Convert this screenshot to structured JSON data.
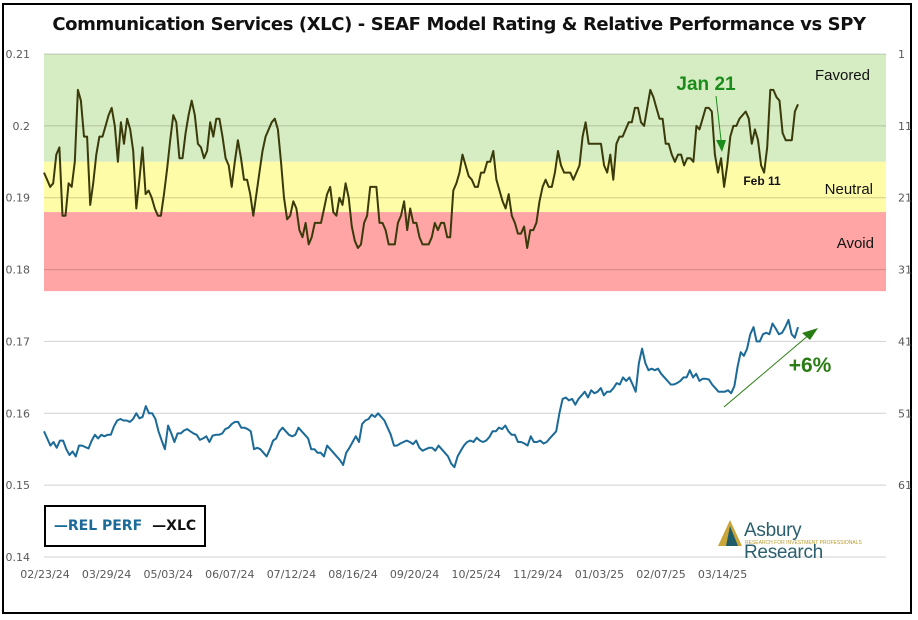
{
  "chart_data": {
    "type": "line",
    "title": "Communication Services (XLC) - SEAF Model Rating & Relative Performance vs SPY",
    "xlabel": "",
    "ylabel": "",
    "y_left": {
      "ticks": [
        "0.14",
        "0.15",
        "0.16",
        "0.17",
        "0.18",
        "0.19",
        "0.2",
        "0.21"
      ],
      "range": [
        0.14,
        0.21
      ]
    },
    "y_right": {
      "ticks": [
        "1",
        "11",
        "21",
        "31",
        "41",
        "51",
        "61"
      ],
      "range": [
        1,
        71
      ],
      "inverted": true
    },
    "x_ticks": [
      "02/23/24",
      "03/29/24",
      "05/03/24",
      "06/07/24",
      "07/12/24",
      "08/16/24",
      "09/20/24",
      "10/25/24",
      "11/29/24",
      "01/03/25",
      "02/07/25",
      "03/14/25"
    ],
    "grid": true,
    "legend": {
      "position": "bottom-left",
      "entries": [
        {
          "label": "—REL PERF",
          "color": "#1b6a98"
        },
        {
          "label": "—XLC",
          "color": "#111111"
        }
      ]
    },
    "bands": [
      {
        "name": "Favored",
        "from": 0.195,
        "to": 0.21,
        "color": "#d6ecc2"
      },
      {
        "name": "Neutral",
        "from": 0.188,
        "to": 0.195,
        "color": "#fffca8"
      },
      {
        "name": "Avoid",
        "from": 0.177,
        "to": 0.188,
        "color": "#ffa5a5"
      }
    ],
    "series": [
      {
        "name": "XLC",
        "color": "#3a3a0a",
        "axis": "left",
        "x_start": 0,
        "x_end": 55.3,
        "values": [
          0.1935,
          0.1925,
          0.1915,
          0.192,
          0.196,
          0.197,
          0.1875,
          0.1875,
          0.192,
          0.1915,
          0.195,
          0.205,
          0.2035,
          0.1985,
          0.1985,
          0.189,
          0.192,
          0.196,
          0.1985,
          0.1985,
          0.2,
          0.2015,
          0.2025,
          0.2,
          0.195,
          0.2005,
          0.1975,
          0.201,
          0.1995,
          0.1965,
          0.1885,
          0.1925,
          0.197,
          0.1905,
          0.191,
          0.19,
          0.1885,
          0.1875,
          0.1875,
          0.1905,
          0.194,
          0.198,
          0.2015,
          0.2005,
          0.1955,
          0.1955,
          0.199,
          0.2015,
          0.2035,
          0.2015,
          0.1975,
          0.197,
          0.1955,
          0.1965,
          0.2005,
          0.1985,
          0.201,
          0.201,
          0.1985,
          0.1955,
          0.1945,
          0.1915,
          0.195,
          0.198,
          0.1955,
          0.1925,
          0.1925,
          0.1905,
          0.1875,
          0.1905,
          0.1935,
          0.1965,
          0.1985,
          0.1995,
          0.2005,
          0.201,
          0.1995,
          0.195,
          0.19,
          0.187,
          0.1875,
          0.1895,
          0.1885,
          0.1855,
          0.1845,
          0.1865,
          0.1835,
          0.1845,
          0.1865,
          0.1865,
          0.1865,
          0.1885,
          0.1905,
          0.1915,
          0.188,
          0.1875,
          0.19,
          0.189,
          0.192,
          0.19,
          0.186,
          0.184,
          0.183,
          0.1835,
          0.1865,
          0.1875,
          0.1915,
          0.1915,
          0.1915,
          0.1865,
          0.1865,
          0.1855,
          0.1835,
          0.1835,
          0.1835,
          0.1865,
          0.1875,
          0.1895,
          0.1855,
          0.1885,
          0.1865,
          0.1865,
          0.1845,
          0.1835,
          0.1835,
          0.1835,
          0.1845,
          0.1865,
          0.1855,
          0.1865,
          0.1865,
          0.1845,
          0.1845,
          0.191,
          0.192,
          0.1935,
          0.196,
          0.1945,
          0.193,
          0.1925,
          0.1915,
          0.1915,
          0.1935,
          0.1935,
          0.195,
          0.195,
          0.1965,
          0.1925,
          0.191,
          0.1895,
          0.1885,
          0.1905,
          0.1875,
          0.1865,
          0.185,
          0.185,
          0.186,
          0.183,
          0.1855,
          0.1855,
          0.1865,
          0.1895,
          0.1915,
          0.1925,
          0.1915,
          0.1915,
          0.1935,
          0.1965,
          0.1945,
          0.1935,
          0.1935,
          0.1935,
          0.1925,
          0.1935,
          0.1945,
          0.1985,
          0.2005,
          0.1975,
          0.1975,
          0.1975,
          0.1975,
          0.1975,
          0.1945,
          0.1935,
          0.196,
          0.1925,
          0.1975,
          0.1985,
          0.1985,
          0.1995,
          0.2005,
          0.2005,
          0.2025,
          0.2025,
          0.2005,
          0.2,
          0.2025,
          0.205,
          0.204,
          0.2025,
          0.201,
          0.201,
          0.1975,
          0.1975,
          0.196,
          0.195,
          0.196,
          0.196,
          0.1945,
          0.1955,
          0.1955,
          0.195,
          0.2,
          0.1995,
          0.201,
          0.2025,
          0.2025,
          0.202,
          0.196,
          0.1935,
          0.1955,
          0.1915,
          0.1945,
          0.1985,
          0.2,
          0.2,
          0.201,
          0.2015,
          0.202,
          0.201,
          0.1975,
          0.1995,
          0.198,
          0.1945,
          0.1935,
          0.197,
          0.205,
          0.205,
          0.204,
          0.2035,
          0.199,
          0.198,
          0.198,
          0.198,
          0.202,
          0.203
        ]
      },
      {
        "name": "REL PERF",
        "color": "#1b6a98",
        "axis": "left",
        "x_start": 0,
        "x_end": 55.3,
        "values": [
          0.1575,
          0.1565,
          0.1555,
          0.156,
          0.1552,
          0.1562,
          0.1562,
          0.155,
          0.1542,
          0.1547,
          0.154,
          0.1555,
          0.1555,
          0.1553,
          0.1551,
          0.1562,
          0.157,
          0.1565,
          0.157,
          0.1568,
          0.157,
          0.157,
          0.1582,
          0.159,
          0.1592,
          0.159,
          0.159,
          0.1588,
          0.1592,
          0.16,
          0.1593,
          0.1595,
          0.161,
          0.16,
          0.16,
          0.1592,
          0.1575,
          0.1562,
          0.155,
          0.1583,
          0.1572,
          0.156,
          0.1572,
          0.1572,
          0.1576,
          0.1578,
          0.1575,
          0.1572,
          0.157,
          0.1563,
          0.1565,
          0.1568,
          0.156,
          0.1569,
          0.157,
          0.157,
          0.1572,
          0.1578,
          0.158,
          0.1585,
          0.1588,
          0.1588,
          0.158,
          0.158,
          0.1578,
          0.1575,
          0.155,
          0.1552,
          0.155,
          0.1545,
          0.154,
          0.155,
          0.1562,
          0.1565,
          0.1575,
          0.158,
          0.1575,
          0.157,
          0.1568,
          0.157,
          0.158,
          0.1575,
          0.157,
          0.1565,
          0.155,
          0.155,
          0.1545,
          0.1545,
          0.154,
          0.1555,
          0.155,
          0.1545,
          0.154,
          0.1535,
          0.1528,
          0.1545,
          0.1552,
          0.156,
          0.1568,
          0.156,
          0.1585,
          0.159,
          0.1592,
          0.1598,
          0.1595,
          0.16,
          0.1595,
          0.159,
          0.158,
          0.157,
          0.1555,
          0.1555,
          0.1558,
          0.156,
          0.1562,
          0.156,
          0.1557,
          0.1562,
          0.1552,
          0.1548,
          0.155,
          0.1552,
          0.1552,
          0.1548,
          0.1555,
          0.155,
          0.1545,
          0.154,
          0.153,
          0.1525,
          0.154,
          0.1548,
          0.1555,
          0.156,
          0.1562,
          0.156,
          0.1566,
          0.1562,
          0.156,
          0.1562,
          0.1567,
          0.1575,
          0.1575,
          0.158,
          0.1578,
          0.1583,
          0.1575,
          0.157,
          0.157,
          0.156,
          0.156,
          0.1558,
          0.1555,
          0.1568,
          0.156,
          0.156,
          0.1562,
          0.1558,
          0.156,
          0.1565,
          0.157,
          0.1575,
          0.16,
          0.162,
          0.1622,
          0.1618,
          0.162,
          0.1612,
          0.162,
          0.1625,
          0.163,
          0.1622,
          0.1632,
          0.1628,
          0.163,
          0.1635,
          0.1625,
          0.163,
          0.163,
          0.1635,
          0.1642,
          0.164,
          0.165,
          0.1645,
          0.165,
          0.164,
          0.163,
          0.167,
          0.169,
          0.167,
          0.166,
          0.1662,
          0.166,
          0.1662,
          0.1655,
          0.165,
          0.1645,
          0.164,
          0.164,
          0.1642,
          0.1645,
          0.165,
          0.165,
          0.166,
          0.165,
          0.1655,
          0.1645,
          0.1648,
          0.1648,
          0.1647,
          0.164,
          0.1635,
          0.163,
          0.163,
          0.163,
          0.1632,
          0.1628,
          0.1638,
          0.1665,
          0.1685,
          0.168,
          0.169,
          0.171,
          0.172,
          0.17,
          0.17,
          0.171,
          0.1712,
          0.171,
          0.1725,
          0.1718,
          0.171,
          0.1712,
          0.172,
          0.173,
          0.171,
          0.1705,
          0.172
        ]
      }
    ],
    "annotations": [
      {
        "text": "Jan 21",
        "color": "#1a8c1a",
        "type": "arrow-down"
      },
      {
        "text": "Feb 11",
        "color": "#111111",
        "type": "label"
      },
      {
        "text": "+6%",
        "color": "#2a7d14",
        "type": "arrow-up"
      }
    ]
  },
  "watermark": {
    "name": "Asbury Research",
    "tagline": "RESEARCH FOR INVESTMENT PROFESSIONALS"
  },
  "band_labels": {
    "favored": "Favored",
    "neutral": "Neutral",
    "avoid": "Avoid"
  },
  "legend": {
    "rel_perf": "—REL PERF",
    "xlc": "—XLC"
  }
}
